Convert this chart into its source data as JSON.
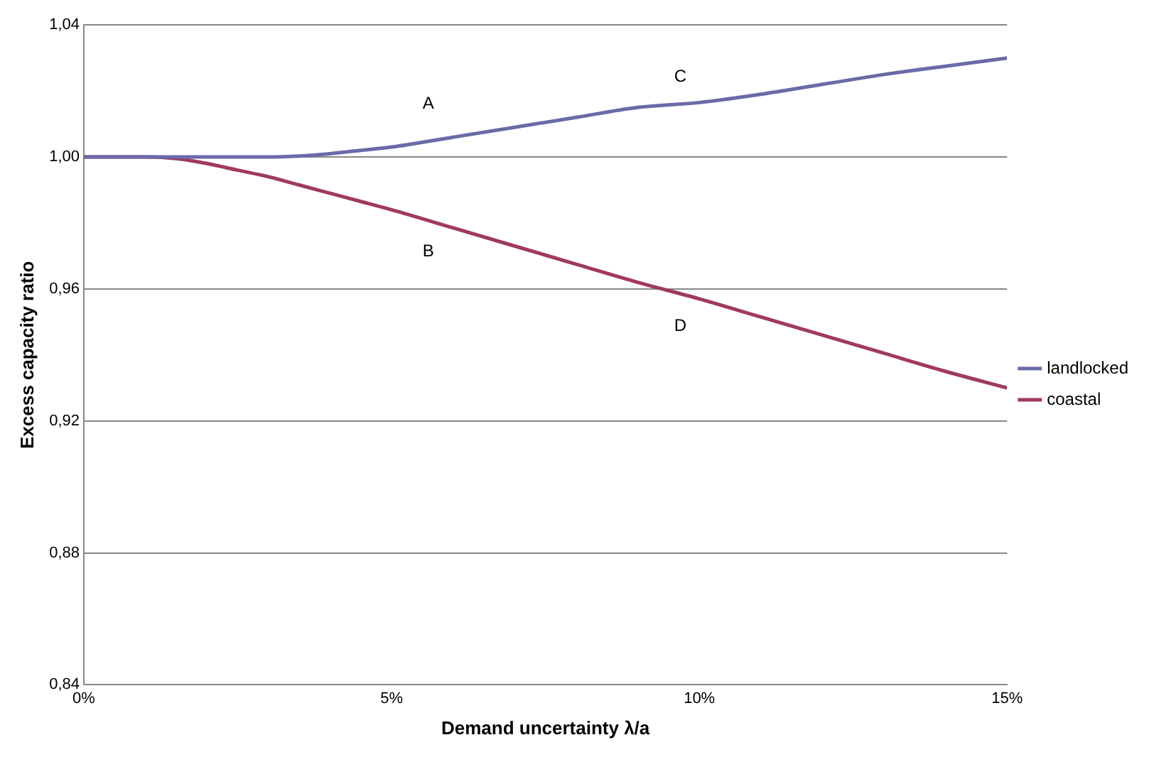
{
  "chart_data": {
    "type": "line",
    "xlabel": "Demand uncertainty λ/a",
    "ylabel": "Excess capacity ratio",
    "x": [
      0,
      0.5,
      1,
      1.5,
      2,
      2.5,
      3,
      3.5,
      4,
      4.5,
      5,
      6,
      7,
      8,
      9,
      10,
      11,
      12,
      13,
      14,
      15
    ],
    "series": [
      {
        "name": "landlocked",
        "color": "#6b6aa8",
        "values": [
          1.0,
          1.0,
          1.0,
          1.0,
          1.0,
          1.0,
          1.0,
          1.0003,
          1.001,
          1.002,
          1.003,
          1.006,
          1.009,
          1.012,
          1.015,
          1.0165,
          1.019,
          1.022,
          1.025,
          1.0275,
          1.03
        ]
      },
      {
        "name": "coastal",
        "color": "#a0395f",
        "values": [
          1.0,
          1.0,
          1.0,
          0.9995,
          0.998,
          0.996,
          0.994,
          0.9915,
          0.989,
          0.9865,
          0.984,
          0.9785,
          0.973,
          0.9675,
          0.962,
          0.957,
          0.9515,
          0.946,
          0.9405,
          0.935,
          0.93
        ]
      }
    ],
    "xlim": [
      0,
      15
    ],
    "xticks": [
      {
        "value": 0,
        "label": "0%"
      },
      {
        "value": 5,
        "label": "5%"
      },
      {
        "value": 10,
        "label": "10%"
      },
      {
        "value": 15,
        "label": "15%"
      }
    ],
    "ylim": [
      0.84,
      1.04
    ],
    "yticks": [
      {
        "value": 0.84,
        "label": "0,84"
      },
      {
        "value": 0.88,
        "label": "0,88"
      },
      {
        "value": 0.92,
        "label": "0,92"
      },
      {
        "value": 0.96,
        "label": "0,96"
      },
      {
        "value": 1.0,
        "label": "1,00"
      },
      {
        "value": 1.04,
        "label": "1,04"
      }
    ],
    "annotations": [
      "A",
      "B",
      "C",
      "D"
    ],
    "grid": "y",
    "legend": "right",
    "marker": "none",
    "line_style": "solid"
  }
}
